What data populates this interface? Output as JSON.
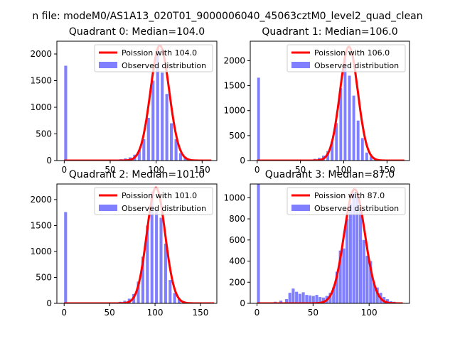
{
  "figure": {
    "suptitle": "n file: modeM0/AS1A13_020T01_9000006040_45063cztM0_level2_quad_clean"
  },
  "colors": {
    "bars": "#8080ff",
    "fit_line": "#ff0000",
    "axis": "#000000",
    "background": "#ffffff"
  },
  "chart_data": [
    {
      "type": "bar",
      "title": "Quadrant 0: Median=104.0",
      "xlim": [
        -8,
        166
      ],
      "ylim": [
        0,
        2240
      ],
      "xticks": [
        0,
        50,
        100,
        150
      ],
      "yticks": [
        0,
        500,
        1000,
        1500,
        2000
      ],
      "legend": {
        "position": "top-right",
        "entries": [
          "Poission with 104.0",
          "Observed distribution"
        ]
      },
      "bins": {
        "x": [
          0,
          40,
          45,
          50,
          55,
          60,
          65,
          70,
          75,
          80,
          85,
          90,
          95,
          100,
          105,
          110,
          115,
          120,
          125,
          130,
          135,
          140,
          145,
          150,
          155
        ],
        "counts": [
          1780,
          5,
          5,
          8,
          15,
          25,
          40,
          60,
          110,
          200,
          400,
          800,
          1500,
          2100,
          1650,
          1250,
          700,
          400,
          140,
          70,
          25,
          10,
          5,
          3,
          2
        ],
        "width": 3.2
      },
      "series": [
        {
          "name": "Poission with 104.0",
          "type": "line",
          "mu": 104.0,
          "peak": 2160,
          "x_range": [
            0,
            160
          ]
        },
        {
          "name": "Observed distribution",
          "type": "bar"
        }
      ]
    },
    {
      "type": "bar",
      "title": "Quadrant 1: Median=106.0",
      "xlim": [
        -8,
        176
      ],
      "ylim": [
        0,
        2390
      ],
      "xticks": [
        0,
        50,
        100,
        150
      ],
      "yticks": [
        0,
        500,
        1000,
        1500,
        2000
      ],
      "legend": {
        "position": "top-right",
        "entries": [
          "Poission with 106.0",
          "Observed distribution"
        ]
      },
      "bins": {
        "x": [
          0,
          40,
          45,
          50,
          55,
          60,
          65,
          70,
          75,
          80,
          85,
          90,
          95,
          100,
          105,
          110,
          115,
          120,
          125,
          130,
          135,
          140,
          145,
          150,
          155,
          160
        ],
        "counts": [
          1660,
          5,
          5,
          8,
          12,
          20,
          35,
          55,
          100,
          190,
          380,
          750,
          1450,
          2050,
          1700,
          1300,
          800,
          450,
          160,
          80,
          30,
          12,
          6,
          3,
          2,
          1
        ],
        "width": 3.2
      },
      "series": [
        {
          "name": "Poission with 106.0",
          "type": "line",
          "mu": 106.0,
          "peak": 2280,
          "x_range": [
            0,
            170
          ]
        },
        {
          "name": "Observed distribution",
          "type": "bar"
        }
      ]
    },
    {
      "type": "bar",
      "title": "Quadrant 2: Median=101.0",
      "xlim": [
        -8,
        168
      ],
      "ylim": [
        0,
        2300
      ],
      "xticks": [
        0,
        50,
        100,
        150
      ],
      "yticks": [
        0,
        500,
        1000,
        1500,
        2000
      ],
      "legend": {
        "position": "top-right",
        "entries": [
          "Poission with 101.0",
          "Observed distribution"
        ]
      },
      "bins": {
        "x": [
          0,
          40,
          45,
          50,
          55,
          60,
          65,
          70,
          75,
          80,
          85,
          90,
          95,
          100,
          105,
          110,
          115,
          120,
          125,
          130,
          135,
          140,
          145,
          150,
          155
        ],
        "counts": [
          1760,
          5,
          5,
          8,
          15,
          30,
          50,
          90,
          180,
          420,
          900,
          1500,
          2150,
          1800,
          1650,
          1150,
          450,
          200,
          90,
          40,
          15,
          8,
          4,
          2,
          1
        ],
        "width": 3.2
      },
      "series": [
        {
          "name": "Poission with 101.0",
          "type": "line",
          "mu": 101.0,
          "peak": 2230,
          "x_range": [
            0,
            165
          ]
        },
        {
          "name": "Observed distribution",
          "type": "bar"
        }
      ]
    },
    {
      "type": "bar",
      "title": "Quadrant 3: Median=87.0",
      "xlim": [
        -6,
        136
      ],
      "ylim": [
        0,
        1130
      ],
      "xticks": [
        0,
        50,
        100
      ],
      "yticks": [
        0,
        200,
        400,
        600,
        800,
        1000
      ],
      "legend": {
        "position": "top-right",
        "entries": [
          "Poission with 87.0",
          "Observed distribution"
        ]
      },
      "bins": {
        "x": [
          0,
          10,
          15,
          20,
          25,
          28,
          31,
          34,
          37,
          40,
          43,
          46,
          49,
          52,
          55,
          58,
          61,
          64,
          67,
          70,
          73,
          76,
          79,
          82,
          85,
          88,
          91,
          94,
          97,
          100,
          103,
          106,
          109,
          112,
          115,
          118,
          121,
          124
        ],
        "counts": [
          1200,
          10,
          15,
          25,
          40,
          100,
          140,
          110,
          90,
          105,
          80,
          75,
          70,
          80,
          60,
          55,
          70,
          100,
          150,
          300,
          500,
          520,
          800,
          950,
          1050,
          1000,
          900,
          600,
          450,
          400,
          200,
          150,
          100,
          60,
          40,
          20,
          15,
          10
        ],
        "width": 2.6
      },
      "series": [
        {
          "name": "Poission with 87.0",
          "type": "line",
          "mu": 87.0,
          "peak": 1080,
          "x_range": [
            0,
            130
          ]
        },
        {
          "name": "Observed distribution",
          "type": "bar"
        }
      ]
    }
  ]
}
